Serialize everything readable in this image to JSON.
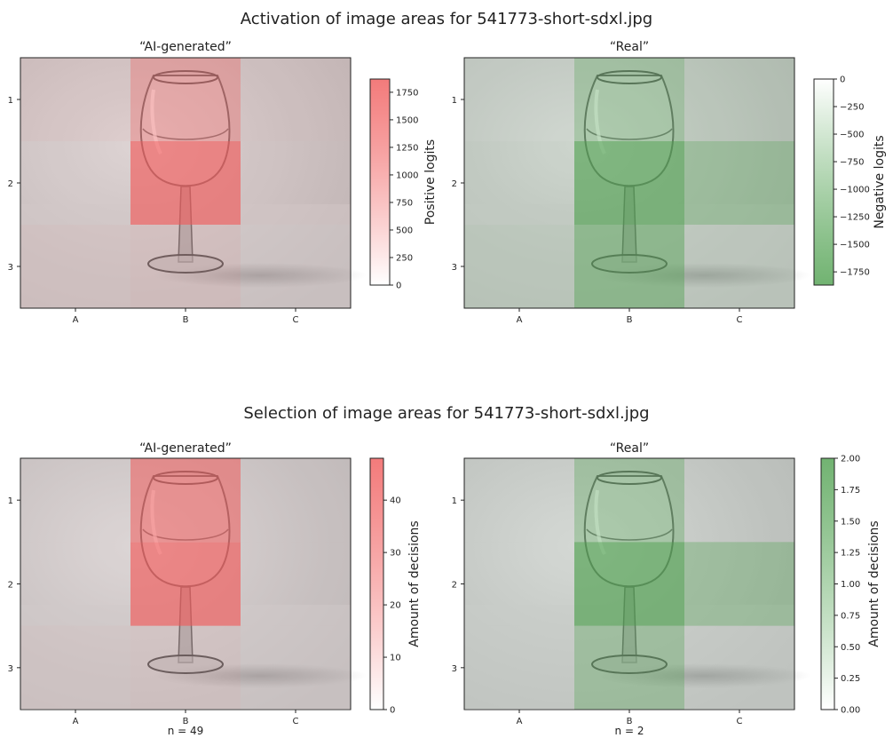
{
  "chart_data": [
    {
      "type": "heatmap",
      "suptitle": "Activation of image areas for 541773-short-sdxl.jpg",
      "title": "“AI-generated”",
      "x_categories": [
        "A",
        "B",
        "C"
      ],
      "y_categories": [
        "1",
        "2",
        "3"
      ],
      "values": [
        [
          180,
          1050,
          120
        ],
        [
          50,
          1870,
          90
        ],
        [
          130,
          240,
          40
        ]
      ],
      "colorbar": {
        "label": "Positive logits",
        "range": [
          0,
          1870
        ],
        "ticks": [
          "0",
          "250",
          "500",
          "750",
          "1000",
          "1250",
          "1500",
          "1750"
        ],
        "color": "#f05a5a"
      },
      "footer": ""
    },
    {
      "type": "heatmap",
      "title": "“Real”",
      "x_categories": [
        "A",
        "B",
        "C"
      ],
      "y_categories": [
        "1",
        "2",
        "3"
      ],
      "values": [
        [
          -80,
          -900,
          -250
        ],
        [
          -150,
          -1850,
          -1000
        ],
        [
          -250,
          -1350,
          -180
        ]
      ],
      "colorbar": {
        "label": "Negative logits",
        "range": [
          -1870,
          0
        ],
        "ticks": [
          "0",
          "−250",
          "−500",
          "−750",
          "−1000",
          "−1250",
          "−1500",
          "−1750"
        ],
        "color": "#4ea04e"
      },
      "footer": ""
    },
    {
      "type": "heatmap",
      "suptitle": "Selection of image areas for 541773-short-sdxl.jpg",
      "title": "“AI-generated”",
      "x_categories": [
        "A",
        "B",
        "C"
      ],
      "y_categories": [
        "1",
        "2",
        "3"
      ],
      "values": [
        [
          0,
          40,
          0
        ],
        [
          0,
          48,
          0
        ],
        [
          2,
          3,
          0
        ]
      ],
      "colorbar": {
        "label": "Amount of decisions",
        "range": [
          0,
          48
        ],
        "ticks": [
          "0",
          "10",
          "20",
          "30",
          "40"
        ],
        "color": "#f05a5a"
      },
      "footer": "n = 49"
    },
    {
      "type": "heatmap",
      "title": "“Real”",
      "x_categories": [
        "A",
        "B",
        "C"
      ],
      "y_categories": [
        "1",
        "2",
        "3"
      ],
      "values": [
        [
          0,
          1,
          0
        ],
        [
          0,
          2,
          1
        ],
        [
          0,
          1,
          0
        ]
      ],
      "colorbar": {
        "label": "Amount of decisions",
        "range": [
          0,
          2
        ],
        "ticks": [
          "0.00",
          "0.25",
          "0.50",
          "0.75",
          "1.00",
          "1.25",
          "1.50",
          "1.75",
          "2.00"
        ],
        "color": "#4ea04e"
      },
      "footer": "n = 2"
    }
  ]
}
